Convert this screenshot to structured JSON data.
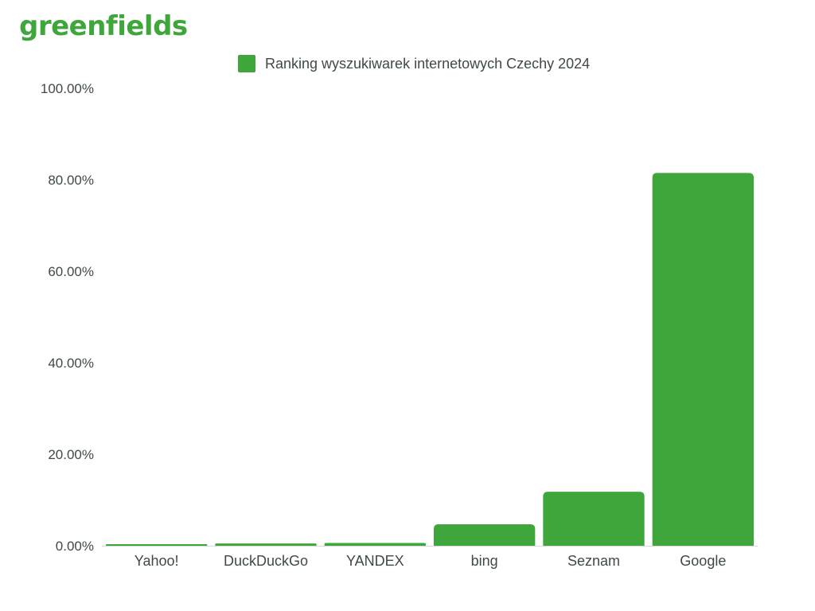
{
  "brand": {
    "logo_text": "greenfields"
  },
  "colors": {
    "bar": "#3ea63a",
    "text": "#3f4a44",
    "axis": "#d9d9d9"
  },
  "chart_data": {
    "type": "bar",
    "categories": [
      "Yahoo!",
      "DuckDuckGo",
      "YANDEX",
      "bing",
      "Seznam",
      "Google"
    ],
    "series": [
      {
        "name": "Ranking wyszukiwarek internetowych Czechy 2024",
        "values": [
          0.3,
          0.5,
          0.6,
          4.7,
          11.8,
          81.5
        ]
      }
    ],
    "ylim": [
      0,
      100
    ],
    "yticks": [
      0,
      20,
      40,
      60,
      80,
      100
    ],
    "ytick_labels": [
      "0.00%",
      "20.00%",
      "40.00%",
      "60.00%",
      "80.00%",
      "100.00%"
    ],
    "xlabel": "",
    "ylabel": "",
    "grid": false,
    "legend_position": "top-center"
  }
}
